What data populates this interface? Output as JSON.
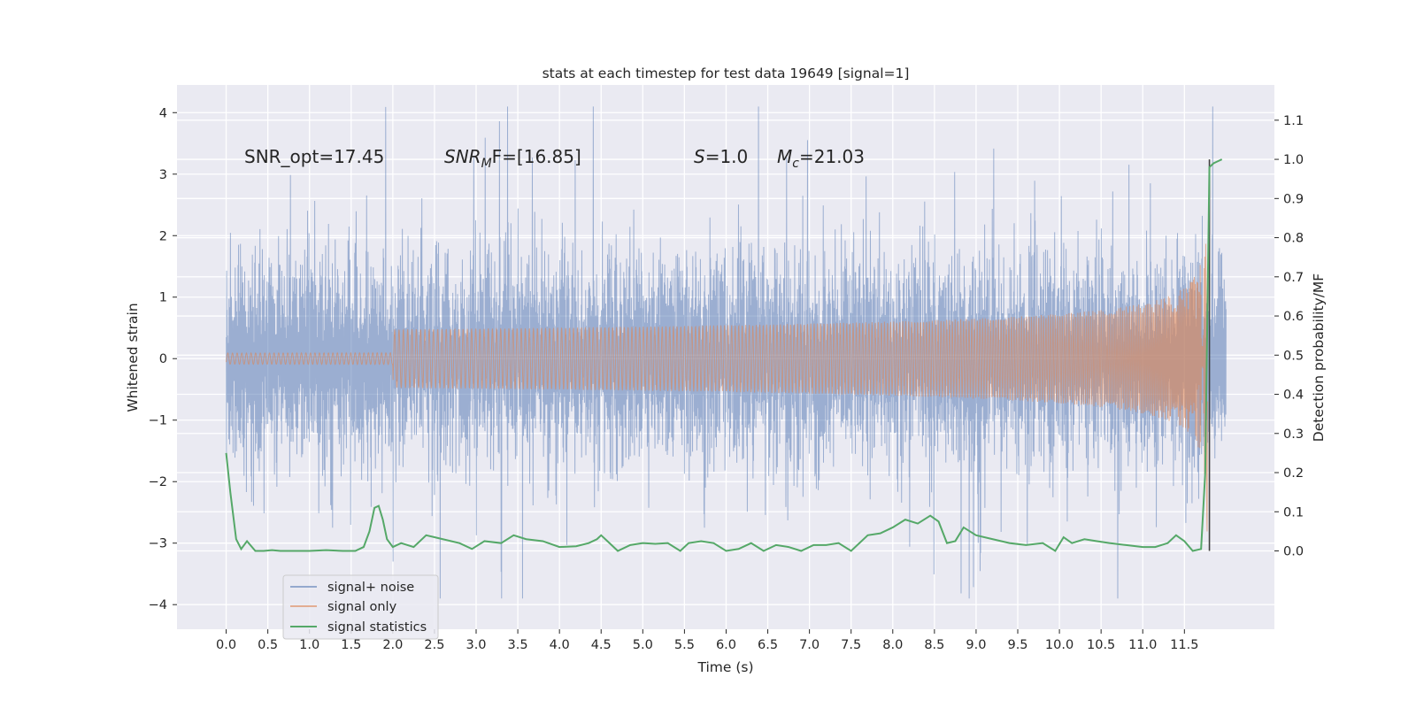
{
  "chart_data": {
    "type": "line",
    "title": "stats at each timestep for test data 19649 [signal=1]",
    "xlabel": "Time (s)",
    "ylabel": "Whitened strain",
    "y2label": "Detection probability/MF",
    "xlim": [
      -0.59,
      12.58
    ],
    "ylim": [
      -4.4,
      4.45
    ],
    "y2lim": [
      -0.2,
      1.19
    ],
    "x_ticks": [
      "0.0",
      "0.5",
      "1.0",
      "1.5",
      "2.0",
      "2.5",
      "3.0",
      "3.5",
      "4.0",
      "4.5",
      "5.0",
      "5.5",
      "6.0",
      "6.5",
      "7.0",
      "7.5",
      "8.0",
      "8.5",
      "9.0",
      "9.5",
      "10.0",
      "10.5",
      "11.0",
      "11.5"
    ],
    "y_ticks": [
      "4",
      "3",
      "2",
      "1",
      "0",
      "−1",
      "−2",
      "−3",
      "−4"
    ],
    "y2_ticks": [
      "1.1",
      "1.0",
      "0.9",
      "0.8",
      "0.7",
      "0.6",
      "0.5",
      "0.4",
      "0.3",
      "0.2",
      "0.1",
      "0.0"
    ],
    "grid": true,
    "legend_position": "lower-left",
    "annotations": {
      "snr_opt": "SNR_opt=17.45",
      "snr_mf_sym": "SNR",
      "snr_mf_sub": "M",
      "snr_mf_rest": "F=[16.85]",
      "s_sym": "S",
      "s_rest": "=1.0",
      "mc_sym": "M",
      "mc_sub": "c",
      "mc_rest": "=21.03"
    },
    "series": [
      {
        "name": "signal+ noise",
        "color": "#4c72b0",
        "kind": "noise-band",
        "duration": 12.0,
        "typical_amplitude": 1.35,
        "peak_min": -3.9,
        "peak_max": 4.1
      },
      {
        "name": "signal only",
        "color": "#dd8452",
        "kind": "chirp",
        "merger_time": 11.78,
        "peak_amplitude": 3.35,
        "visible_from": 7.2
      },
      {
        "name": "signal statistics",
        "color": "#55a868",
        "axis": "right",
        "x": [
          0.0,
          0.05,
          0.12,
          0.18,
          0.25,
          0.35,
          0.45,
          0.55,
          0.65,
          0.8,
          1.0,
          1.2,
          1.4,
          1.55,
          1.65,
          1.72,
          1.78,
          1.83,
          1.88,
          1.93,
          2.0,
          2.1,
          2.25,
          2.4,
          2.5,
          2.6,
          2.8,
          2.95,
          3.1,
          3.3,
          3.45,
          3.6,
          3.8,
          4.0,
          4.2,
          4.35,
          4.45,
          4.5,
          4.6,
          4.7,
          4.85,
          5.0,
          5.15,
          5.3,
          5.45,
          5.55,
          5.7,
          5.85,
          6.0,
          6.15,
          6.3,
          6.45,
          6.6,
          6.75,
          6.9,
          7.05,
          7.2,
          7.35,
          7.5,
          7.7,
          7.85,
          8.0,
          8.15,
          8.3,
          8.45,
          8.55,
          8.65,
          8.75,
          8.85,
          9.0,
          9.2,
          9.4,
          9.6,
          9.8,
          9.95,
          10.05,
          10.15,
          10.3,
          10.45,
          10.6,
          10.8,
          11.0,
          11.15,
          11.3,
          11.4,
          11.5,
          11.6,
          11.7,
          11.75,
          11.8,
          11.85,
          11.9,
          11.95
        ],
        "values": [
          0.25,
          0.15,
          0.03,
          0.005,
          0.025,
          0.0,
          0.0,
          0.002,
          0.0,
          0.0,
          0.0,
          0.002,
          0.0,
          0.0,
          0.01,
          0.05,
          0.11,
          0.115,
          0.08,
          0.03,
          0.01,
          0.02,
          0.01,
          0.04,
          0.035,
          0.03,
          0.02,
          0.005,
          0.025,
          0.02,
          0.04,
          0.03,
          0.025,
          0.01,
          0.012,
          0.02,
          0.03,
          0.04,
          0.02,
          0.0,
          0.015,
          0.02,
          0.018,
          0.02,
          0.0,
          0.02,
          0.025,
          0.02,
          0.0,
          0.005,
          0.02,
          0.0,
          0.015,
          0.01,
          0.0,
          0.015,
          0.015,
          0.02,
          0.0,
          0.04,
          0.045,
          0.06,
          0.08,
          0.07,
          0.09,
          0.075,
          0.02,
          0.025,
          0.06,
          0.04,
          0.03,
          0.02,
          0.015,
          0.02,
          0.0,
          0.035,
          0.02,
          0.03,
          0.025,
          0.02,
          0.015,
          0.01,
          0.01,
          0.02,
          0.04,
          0.025,
          0.0,
          0.005,
          0.2,
          0.98,
          0.99,
          0.995,
          1.0
        ]
      }
    ],
    "merger_marker": {
      "x": 11.8,
      "color": "#404040"
    }
  }
}
